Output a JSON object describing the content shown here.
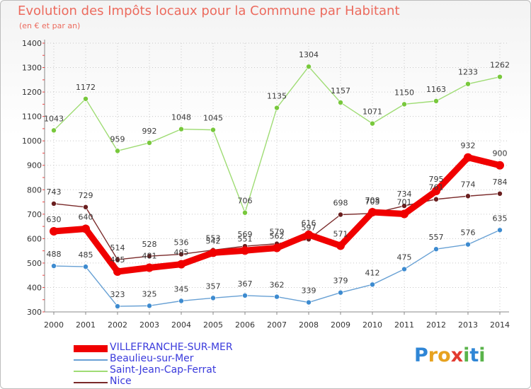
{
  "title": "Evolution des Impôts locaux pour la Commune par Habitant",
  "subtitle": "(en € et par an)",
  "colors": {
    "title": "#ec6b5e",
    "axis_text": "#333333",
    "legend_text": "#3a3adc",
    "grid": "#c8c8c8"
  },
  "logo": {
    "text": "Proxiti",
    "letters": [
      "P",
      "r",
      "o",
      "x",
      "i",
      "t",
      "i"
    ],
    "colors": [
      "#2f86d6",
      "#e7a21f",
      "#e7a21f",
      "#e23a2f",
      "#59b34a",
      "#2f86d6",
      "#59b34a"
    ]
  },
  "chart_data": {
    "type": "line",
    "title": "Evolution des Impôts locaux pour la Commune par Habitant",
    "subtitle": "(en € et par an)",
    "xlabel": "",
    "ylabel": "",
    "x": [
      "2000",
      "2001",
      "2002",
      "2003",
      "2004",
      "2005",
      "2006",
      "2007",
      "2008",
      "2009",
      "2010",
      "2011",
      "2012",
      "2013",
      "2014"
    ],
    "ylim": [
      300,
      1400
    ],
    "yticks": [
      300,
      400,
      500,
      600,
      700,
      800,
      900,
      1000,
      1100,
      1200,
      1300,
      1400
    ],
    "grid": true,
    "legend_position": "bottom-left",
    "series": [
      {
        "name": "VILLEFRANCHE-SUR-MER",
        "color": "#f00000",
        "line_width": 9,
        "marker_radius": 6,
        "values": [
          630,
          640,
          465,
          481,
          495,
          542,
          551,
          562,
          616,
          571,
          708,
          701,
          795,
          932,
          900
        ],
        "labels": [
          "630",
          "640",
          "465",
          "481",
          "495",
          "542",
          "551",
          "562",
          "616",
          "571",
          "708",
          "701",
          "795",
          "932",
          "900"
        ]
      },
      {
        "name": "Beaulieu-sur-Mer",
        "color": "#67a0d4",
        "line_width": 1.4,
        "marker_radius": 3.5,
        "marker_color": "#3d8bd0",
        "values": [
          488,
          485,
          323,
          325,
          345,
          357,
          367,
          362,
          339,
          379,
          412,
          475,
          557,
          576,
          635
        ],
        "labels": [
          "488",
          "485",
          "323",
          "325",
          "345",
          "357",
          "367",
          "362",
          "339",
          "379",
          "412",
          "475",
          "557",
          "576",
          "635"
        ]
      },
      {
        "name": "Saint-Jean-Cap-Ferrat",
        "color": "#9fdc74",
        "line_width": 1.4,
        "marker_radius": 3.5,
        "marker_color": "#78c83c",
        "values": [
          1043,
          1172,
          959,
          992,
          1048,
          1045,
          706,
          1135,
          1304,
          1157,
          1071,
          1150,
          1163,
          1233,
          1262
        ],
        "labels": [
          "1043",
          "1172",
          "959",
          "992",
          "1048",
          "1045",
          "706",
          "1135",
          "1304",
          "1157",
          "1071",
          "1150",
          "1163",
          "1233",
          "1262"
        ]
      },
      {
        "name": "Nice",
        "color": "#7a2a2a",
        "line_width": 1.4,
        "marker_radius": 3.5,
        "marker_color": "#6a1f1f",
        "values": [
          743,
          729,
          514,
          528,
          536,
          553,
          569,
          579,
          597,
          698,
          703,
          734,
          761,
          774,
          784
        ],
        "labels": [
          "743",
          "729",
          "514",
          "528",
          "536",
          "553",
          "569",
          "579",
          "597",
          "698",
          "703",
          "734",
          "761",
          "774",
          "784"
        ]
      }
    ]
  }
}
